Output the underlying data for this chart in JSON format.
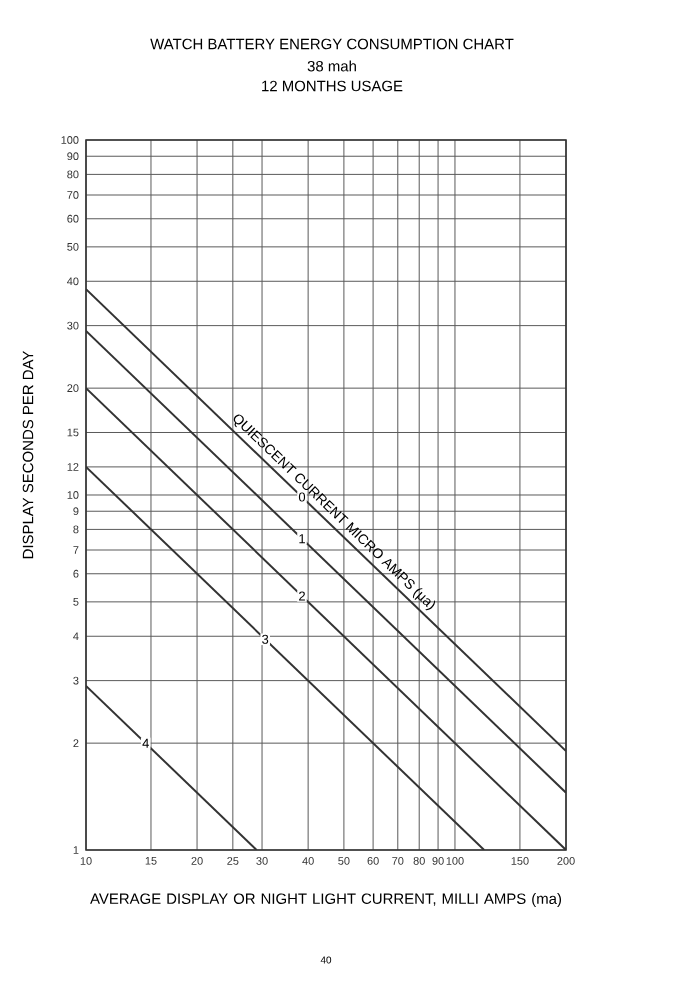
{
  "chart_data": {
    "type": "line",
    "title": "WATCH BATTERY ENERGY CONSUMPTION CHART",
    "subtitle": "38 mah",
    "xlabel": "AVERAGE DISPLAY OR NIGHT LIGHT CURRENT, MILLI AMPS (ma)",
    "ylabel": "DISPLAY SECONDS PER DAY",
    "legend_title": "QUIESCENT CURRENT MICRO AMPS (µa)",
    "annotations": [
      "12 MONTHS USAGE",
      "40"
    ],
    "log": "xy",
    "grid": true,
    "marker": "none",
    "line_style": "solid",
    "xlim": [
      10,
      200
    ],
    "ylim": [
      1,
      100
    ],
    "xticks": [
      10,
      15,
      20,
      25,
      30,
      40,
      50,
      60,
      70,
      80,
      90,
      100,
      150,
      200
    ],
    "yticks": [
      1,
      2,
      3,
      4,
      5,
      6,
      7,
      8,
      9,
      10,
      12,
      15,
      20,
      30,
      40,
      50,
      60,
      70,
      80,
      90,
      100
    ],
    "series": [
      {
        "name": "0",
        "color": "#333333",
        "x": [
          10,
          200
        ],
        "values": [
          38,
          1.9
        ]
      },
      {
        "name": "1",
        "color": "#333333",
        "x": [
          10,
          200
        ],
        "values": [
          29,
          1.45
        ]
      },
      {
        "name": "2",
        "color": "#333333",
        "x": [
          10,
          200
        ],
        "values": [
          20,
          1.0
        ]
      },
      {
        "name": "3",
        "color": "#333333",
        "x": [
          10,
          120
        ],
        "values": [
          12,
          1.0
        ]
      },
      {
        "name": "4",
        "color": "#333333",
        "x": [
          10,
          29
        ],
        "values": [
          2.9,
          1.0
        ]
      }
    ]
  }
}
